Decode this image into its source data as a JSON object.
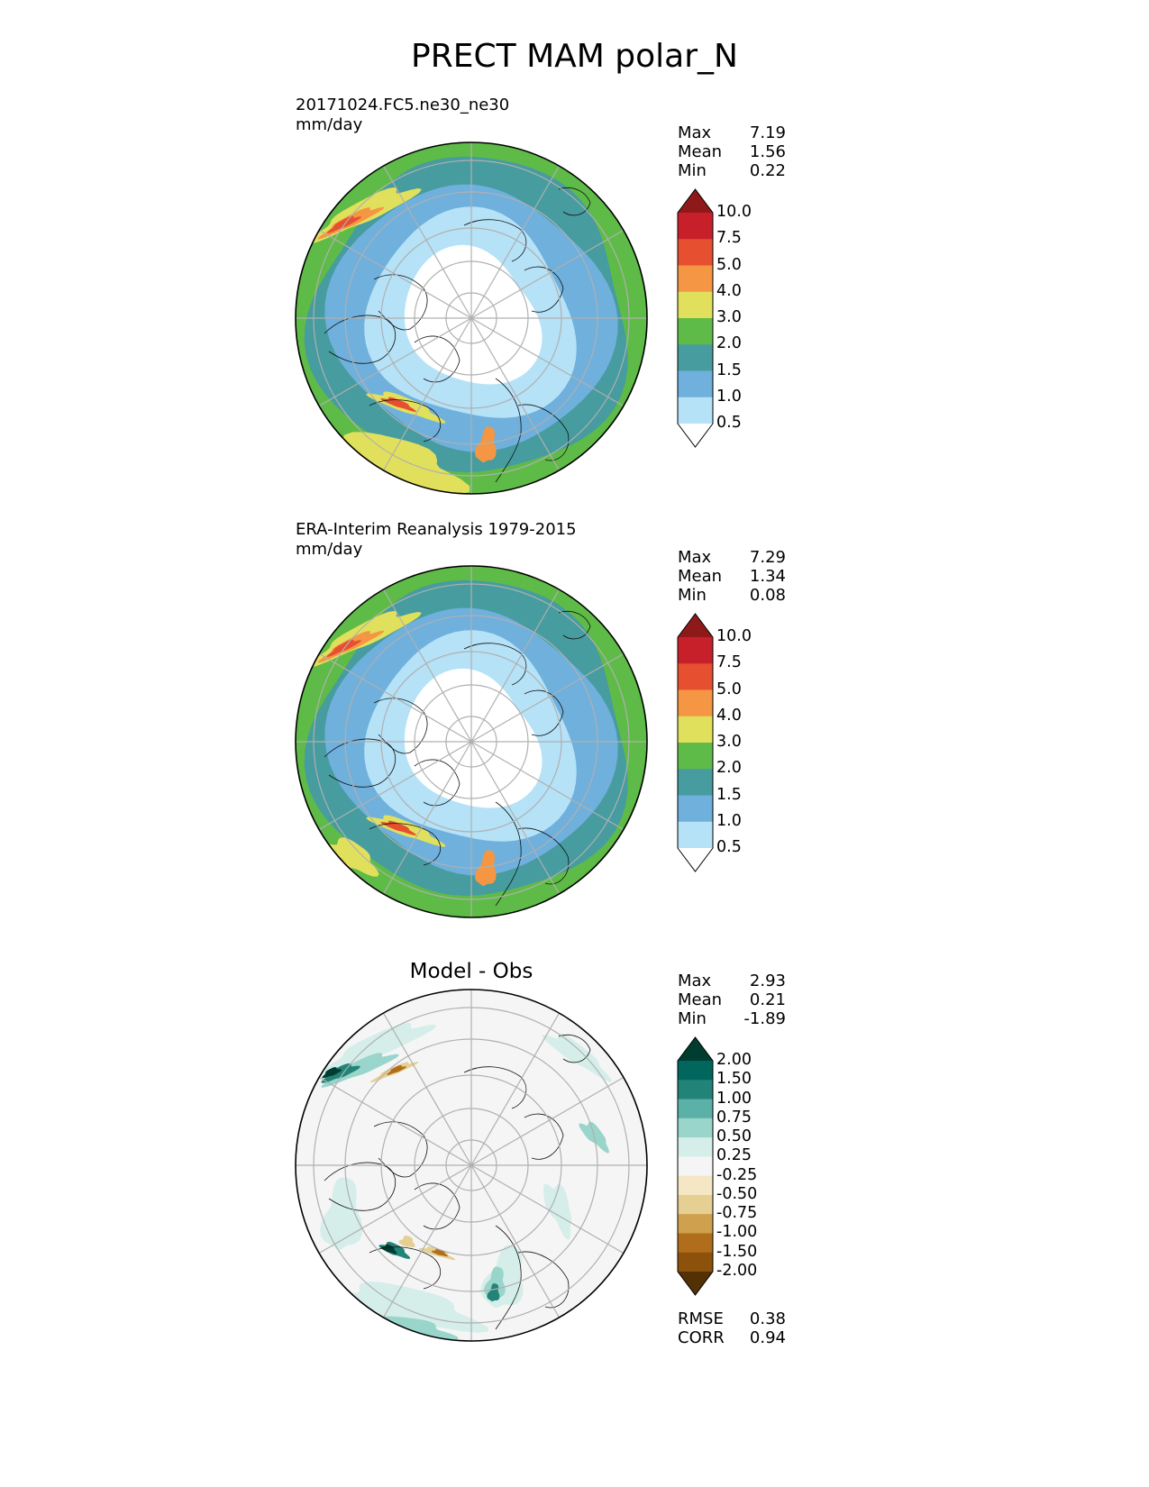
{
  "figure": {
    "title": "PRECT MAM polar_N"
  },
  "panels": [
    {
      "id": "test",
      "title_lines": [
        "20171024.FC5.ne30_ne30",
        "mm/day"
      ],
      "stats": [
        {
          "label": "Max",
          "value": "7.19"
        },
        {
          "label": "Mean",
          "value": "1.56"
        },
        {
          "label": "Min",
          "value": "0.22"
        }
      ]
    },
    {
      "id": "ref",
      "title_lines": [
        "ERA-Interim Reanalysis 1979-2015",
        "mm/day"
      ],
      "stats": [
        {
          "label": "Max",
          "value": "7.29"
        },
        {
          "label": "Mean",
          "value": "1.34"
        },
        {
          "label": "Min",
          "value": "0.08"
        }
      ]
    },
    {
      "id": "diff",
      "title": "Model - Obs",
      "stats": [
        {
          "label": "Max",
          "value": "2.93"
        },
        {
          "label": "Mean",
          "value": "0.21"
        },
        {
          "label": "Min",
          "value": "-1.89"
        }
      ],
      "metrics": [
        {
          "label": "RMSE",
          "value": "0.38"
        },
        {
          "label": "CORR",
          "value": "0.94"
        }
      ]
    }
  ],
  "chart_data": [
    {
      "type": "heatmap",
      "projection": "north-polar-stereographic",
      "variable": "PRECT",
      "season": "MAM",
      "title": "20171024.FC5.ne30_ne30",
      "units": "mm/day",
      "colorbar": {
        "levels": [
          "0.5",
          "1.0",
          "1.5",
          "2.0",
          "3.0",
          "4.0",
          "5.0",
          "7.5",
          "10.0"
        ],
        "colors": [
          "#ffffff",
          "#b5e2f7",
          "#6fb0dd",
          "#469c9f",
          "#5fbb47",
          "#e1e05c",
          "#f49643",
          "#e64f2f",
          "#c8202a",
          "#8f1919"
        ],
        "extend": "both"
      },
      "max": 7.19,
      "mean": 1.56,
      "min": 0.22
    },
    {
      "type": "heatmap",
      "projection": "north-polar-stereographic",
      "variable": "PRECT",
      "season": "MAM",
      "title": "ERA-Interim Reanalysis 1979-2015",
      "units": "mm/day",
      "colorbar": {
        "levels": [
          "0.5",
          "1.0",
          "1.5",
          "2.0",
          "3.0",
          "4.0",
          "5.0",
          "7.5",
          "10.0"
        ],
        "colors": [
          "#ffffff",
          "#b5e2f7",
          "#6fb0dd",
          "#469c9f",
          "#5fbb47",
          "#e1e05c",
          "#f49643",
          "#e64f2f",
          "#c8202a",
          "#8f1919"
        ],
        "extend": "both"
      },
      "max": 7.29,
      "mean": 1.34,
      "min": 0.08
    },
    {
      "type": "heatmap",
      "projection": "north-polar-stereographic",
      "variable": "PRECT",
      "season": "MAM",
      "title": "Model - Obs",
      "colorbar": {
        "levels": [
          "-2.00",
          "-1.50",
          "-1.00",
          "-0.75",
          "-0.50",
          "-0.25",
          "0.25",
          "0.50",
          "0.75",
          "1.00",
          "1.50",
          "2.00"
        ],
        "colors": [
          "#543005",
          "#8c510a",
          "#b06e1c",
          "#cfa14e",
          "#e6cf93",
          "#f5e7c4",
          "#f5f5f5",
          "#d5eee9",
          "#99d5ca",
          "#5bb1a7",
          "#228378",
          "#00665e",
          "#003c30"
        ],
        "extend": "both"
      },
      "max": 2.93,
      "mean": 0.21,
      "min": -1.89,
      "rmse": 0.38,
      "corr": 0.94
    }
  ]
}
